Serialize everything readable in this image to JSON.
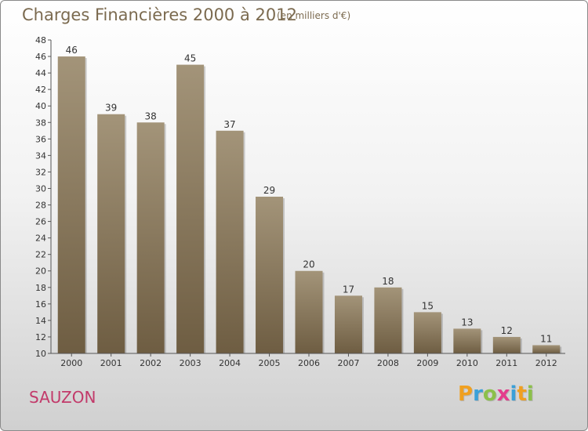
{
  "title": "Charges Financières 2000 à 2012",
  "subtitle": "(en milliers d'€)",
  "commune": "SAUZON",
  "brand": {
    "letters": [
      "P",
      "r",
      "o",
      "x",
      "i",
      "t",
      "i"
    ],
    "colors": [
      "#f0a020",
      "#3aa0d8",
      "#8cc04a",
      "#e43c8c",
      "#3aa0d8",
      "#f0a020",
      "#8cc04a"
    ]
  },
  "colors": {
    "bar_top": "#a39479",
    "bar_bottom": "#6e5d42",
    "text": "#7b6a4f",
    "axis": "#555555"
  },
  "chart_data": {
    "type": "bar",
    "title": "Charges Financières 2000 à 2012",
    "subtitle": "(en milliers d'€)",
    "categories": [
      "2000",
      "2001",
      "2002",
      "2003",
      "2004",
      "2005",
      "2006",
      "2007",
      "2008",
      "2009",
      "2010",
      "2011",
      "2012"
    ],
    "values": [
      46,
      39,
      38,
      45,
      37,
      29,
      20,
      17,
      18,
      15,
      13,
      12,
      11
    ],
    "ylim": [
      10,
      48
    ],
    "yticks": [
      10,
      12,
      14,
      16,
      18,
      20,
      22,
      24,
      26,
      28,
      30,
      32,
      34,
      36,
      38,
      40,
      42,
      44,
      46,
      48
    ],
    "grid": false,
    "legend": "none"
  }
}
